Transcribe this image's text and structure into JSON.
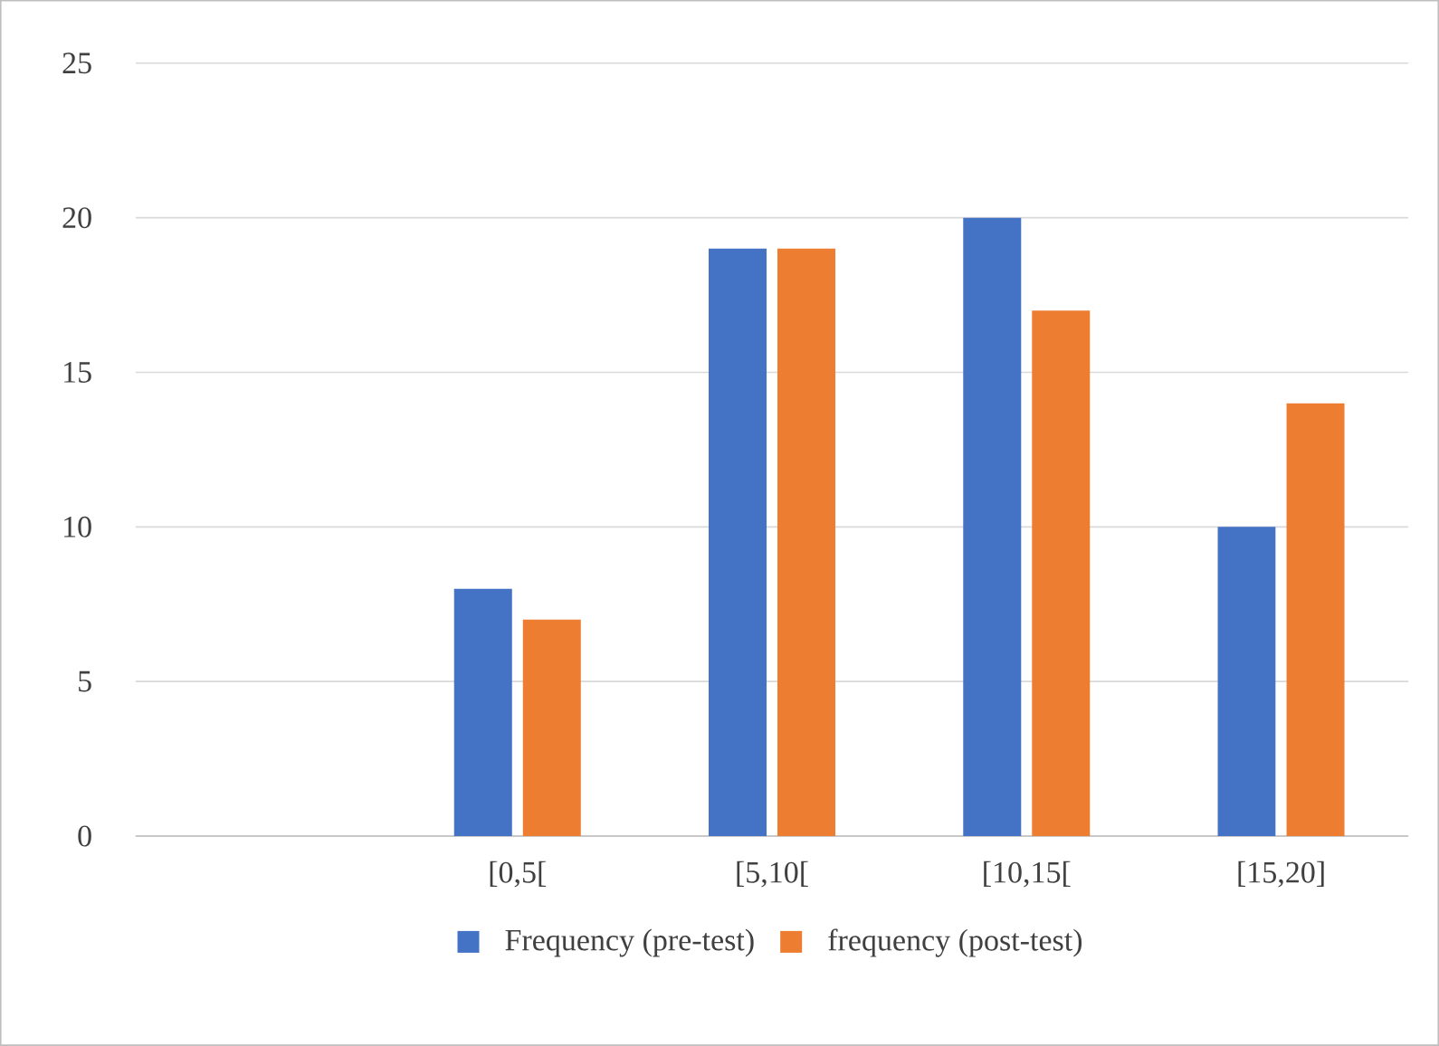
{
  "chart_data": {
    "type": "bar",
    "categories": [
      null,
      "[0,5[",
      "[5,10[",
      "[10,15[",
      "[15,20]"
    ],
    "series": [
      {
        "name": "Frequency (pre-test)",
        "color": "#4472c4",
        "values": [
          null,
          8,
          19,
          20,
          10
        ]
      },
      {
        "name": "frequency (post-test)",
        "color": "#ed7d31",
        "values": [
          null,
          7,
          19,
          17,
          14
        ]
      }
    ],
    "ylim": [
      0,
      25
    ],
    "yticks": [
      0,
      5,
      10,
      15,
      20,
      25
    ],
    "grid": "y",
    "legend": "bottom"
  }
}
